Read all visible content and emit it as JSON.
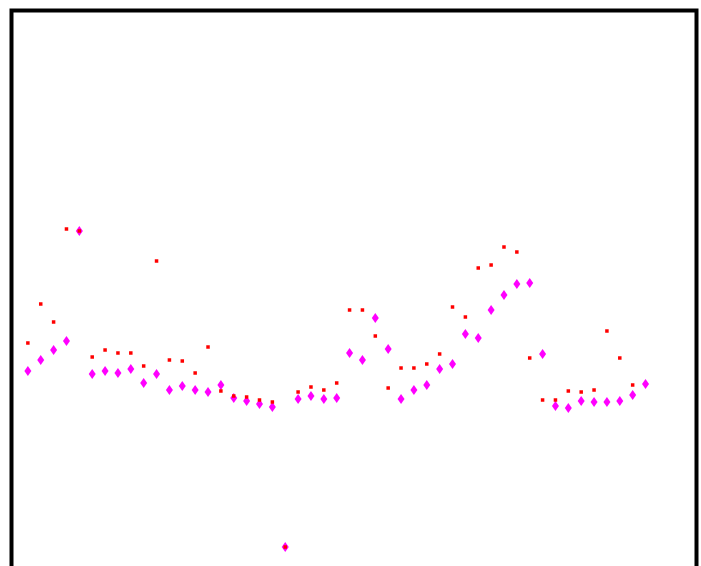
{
  "chart_data": {
    "type": "scatter",
    "title": "",
    "xlabel": "",
    "ylabel": "",
    "grid": false,
    "legend": "none",
    "xlim": [
      0,
      53
    ],
    "ylim": [
      0,
      566
    ],
    "x": [
      1,
      2,
      3,
      4,
      5,
      6,
      7,
      8,
      9,
      10,
      11,
      12,
      13,
      14,
      15,
      16,
      17,
      18,
      19,
      20,
      21,
      22,
      23,
      24,
      25,
      26,
      27,
      28,
      29,
      30,
      31,
      32,
      33,
      34,
      35,
      36,
      37,
      38,
      39,
      40,
      41,
      42,
      43,
      44,
      45,
      46,
      47,
      48,
      49,
      50,
      51,
      52
    ],
    "series": [
      {
        "color": "#ff00ff",
        "marker": "diamond",
        "values": [
          195,
          206,
          216,
          225,
          335,
          192,
          195,
          193,
          197,
          183,
          192,
          176,
          180,
          176,
          174,
          181,
          168,
          165,
          162,
          159,
          19,
          167,
          170,
          167,
          168,
          213,
          206,
          248,
          217,
          167,
          176,
          181,
          197,
          202,
          232,
          228,
          256,
          271,
          282,
          283,
          212,
          160,
          158,
          165,
          164,
          164,
          165,
          171,
          182,
          null,
          null,
          null
        ]
      },
      {
        "color": "#ff0000",
        "marker": "square",
        "values": [
          223,
          262,
          244,
          337,
          335,
          209,
          216,
          213,
          213,
          200,
          305,
          206,
          205,
          193,
          219,
          175,
          170,
          169,
          166,
          164,
          19,
          174,
          179,
          176,
          183,
          256,
          256,
          230,
          178,
          198,
          198,
          202,
          212,
          259,
          249,
          298,
          301,
          319,
          314,
          208,
          166,
          166,
          175,
          174,
          176,
          235,
          208,
          181,
          null,
          null,
          null,
          null
        ]
      }
    ]
  }
}
